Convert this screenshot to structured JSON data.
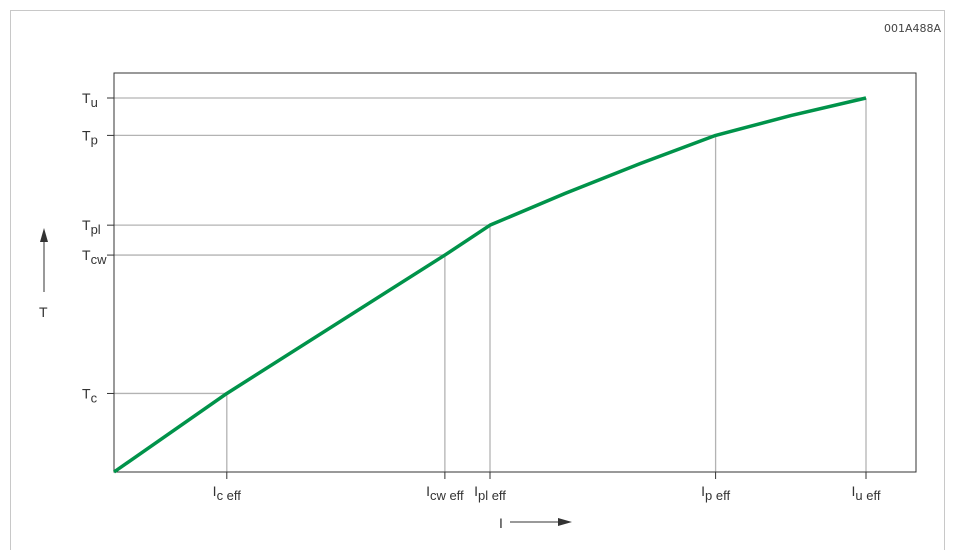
{
  "figure_id": "001A488A",
  "chart_data": {
    "type": "line",
    "title": "",
    "xlabel": "I",
    "ylabel": "T",
    "grid": false,
    "line_color": "#00934a",
    "guide_color": "#b3b3b3",
    "y_levels": [
      {
        "key": "c",
        "main": "T",
        "sub": "c",
        "value": 0.21
      },
      {
        "key": "cw",
        "main": "T",
        "sub": "cw",
        "value": 0.58
      },
      {
        "key": "pl",
        "main": "T",
        "sub": "pl",
        "value": 0.66
      },
      {
        "key": "p",
        "main": "T",
        "sub": "p",
        "value": 0.9
      },
      {
        "key": "u",
        "main": "T",
        "sub": "u",
        "value": 1.0
      }
    ],
    "x_levels": [
      {
        "key": "c",
        "main": "I",
        "sub": "c eff",
        "value": 0.15
      },
      {
        "key": "cw",
        "main": "I",
        "sub": "cw eff",
        "value": 0.44
      },
      {
        "key": "pl",
        "main": "I",
        "sub": "pl eff",
        "value": 0.5
      },
      {
        "key": "p",
        "main": "I",
        "sub": "p eff",
        "value": 0.8
      },
      {
        "key": "u",
        "main": "I",
        "sub": "u eff",
        "value": 1.0
      }
    ],
    "points": [
      {
        "x": 0.0,
        "y": 0.0
      },
      {
        "x": 0.15,
        "y": 0.21
      },
      {
        "x": 0.44,
        "y": 0.58
      },
      {
        "x": 0.5,
        "y": 0.66
      },
      {
        "x": 0.6,
        "y": 0.745
      },
      {
        "x": 0.7,
        "y": 0.825
      },
      {
        "x": 0.8,
        "y": 0.9
      },
      {
        "x": 0.9,
        "y": 0.953
      },
      {
        "x": 1.0,
        "y": 1.0
      }
    ]
  }
}
